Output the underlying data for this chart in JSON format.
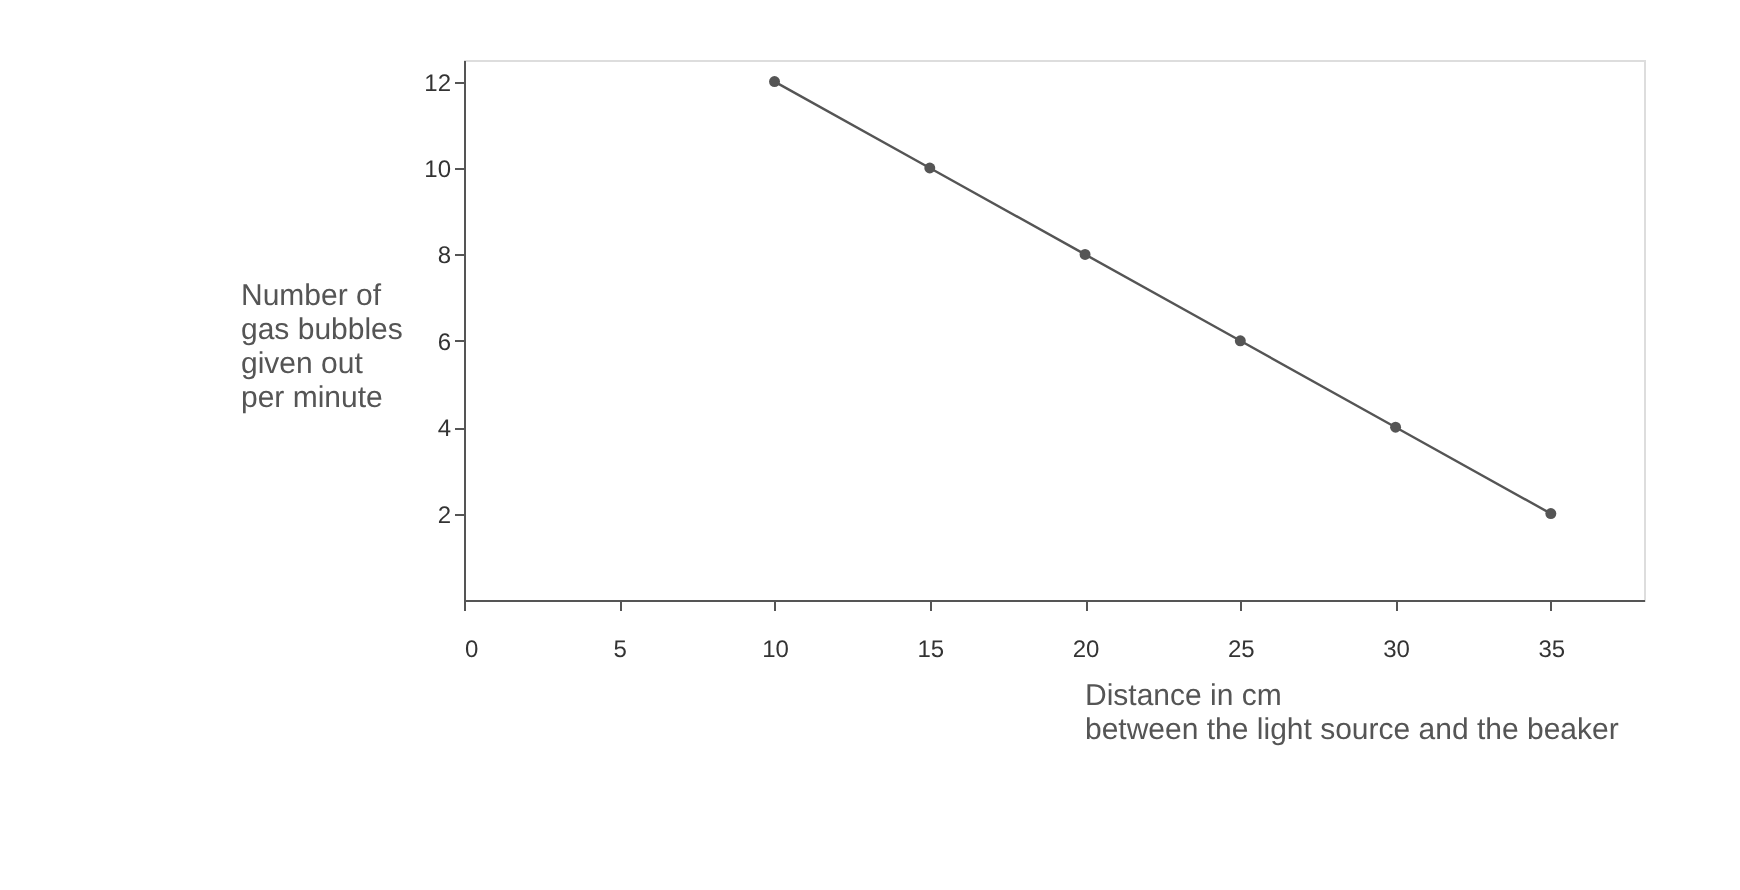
{
  "chart_data": {
    "type": "line",
    "x": [
      10,
      15,
      20,
      25,
      30,
      35
    ],
    "series": [
      {
        "color": "#555555",
        "values": [
          12,
          10,
          8,
          6,
          4,
          2
        ]
      }
    ],
    "xlabel": "Distance in cm\nbetween the light source and the beaker",
    "ylabel": "Number of\ngas bubbles\ngiven out\nper minute",
    "xlim": [
      0,
      38
    ],
    "xticks": [
      0,
      5,
      10,
      15,
      20,
      25,
      30,
      35
    ],
    "ylim": [
      0,
      12.5
    ],
    "yticks": [
      2,
      4,
      6,
      8,
      10,
      12
    ],
    "marker": "circle",
    "line_style": "solid",
    "grid": false,
    "legend": false
  }
}
